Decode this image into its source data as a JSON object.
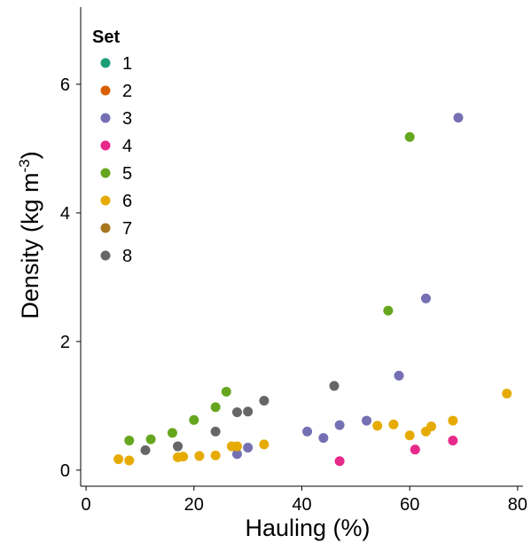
{
  "chart_data": {
    "type": "scatter",
    "xlabel": "Hauling (%)",
    "ylabel_main": "Density (kg m",
    "ylabel_sup": "-3",
    "ylabel_close": ")",
    "xlim": [
      -1,
      81
    ],
    "ylim": [
      -0.25,
      7.2
    ],
    "x_ticks": [
      0,
      20,
      40,
      60,
      80
    ],
    "y_ticks": [
      0,
      2,
      4,
      6
    ],
    "grid": false,
    "legend": {
      "title": "Set",
      "position": "top-left"
    },
    "series": [
      {
        "name": "1",
        "color": "#1b9e77",
        "points": []
      },
      {
        "name": "2",
        "color": "#d95f02",
        "points": []
      },
      {
        "name": "3",
        "color": "#7570b3",
        "points": [
          [
            28,
            0.25
          ],
          [
            30,
            0.35
          ],
          [
            41,
            0.6
          ],
          [
            44,
            0.5
          ],
          [
            47,
            0.7
          ],
          [
            52,
            0.77
          ],
          [
            58,
            1.47
          ],
          [
            63,
            2.67
          ],
          [
            69,
            5.48
          ]
        ]
      },
      {
        "name": "4",
        "color": "#e7298a",
        "points": [
          [
            47,
            0.14
          ],
          [
            61,
            0.32
          ],
          [
            68,
            0.46
          ]
        ]
      },
      {
        "name": "5",
        "color": "#66a61e",
        "points": [
          [
            8,
            0.46
          ],
          [
            12,
            0.48
          ],
          [
            16,
            0.58
          ],
          [
            20,
            0.78
          ],
          [
            24,
            0.98
          ],
          [
            26,
            1.22
          ],
          [
            56,
            2.48
          ],
          [
            60,
            5.18
          ]
        ]
      },
      {
        "name": "6",
        "color": "#e6ab02",
        "points": [
          [
            6,
            0.17
          ],
          [
            8,
            0.15
          ],
          [
            17,
            0.2
          ],
          [
            18,
            0.21
          ],
          [
            21,
            0.22
          ],
          [
            24,
            0.23
          ],
          [
            27,
            0.37
          ],
          [
            28,
            0.37
          ],
          [
            33,
            0.4
          ],
          [
            54,
            0.69
          ],
          [
            57,
            0.71
          ],
          [
            60,
            0.54
          ],
          [
            63,
            0.6
          ],
          [
            64,
            0.68
          ],
          [
            68,
            0.77
          ],
          [
            78,
            1.19
          ]
        ]
      },
      {
        "name": "7",
        "color": "#a6761d",
        "points": []
      },
      {
        "name": "8",
        "color": "#666666",
        "points": [
          [
            11,
            0.31
          ],
          [
            17,
            0.37
          ],
          [
            24,
            0.6
          ],
          [
            28,
            0.9
          ],
          [
            30,
            0.91
          ],
          [
            33,
            1.08
          ],
          [
            46,
            1.31
          ]
        ]
      }
    ]
  }
}
